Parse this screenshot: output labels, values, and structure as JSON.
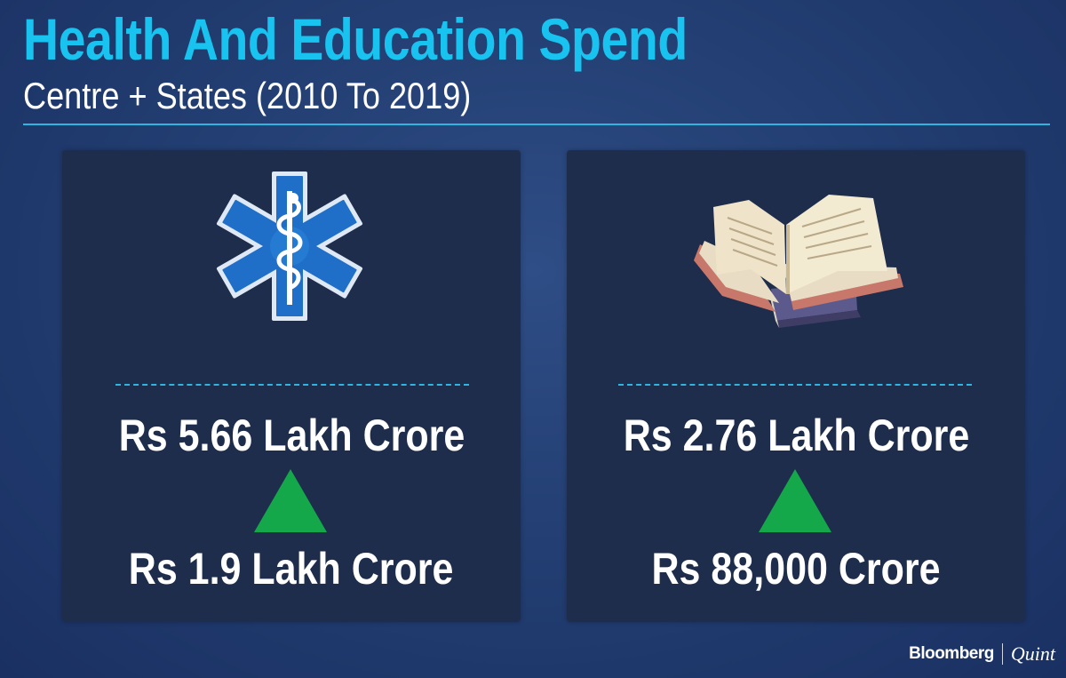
{
  "title": "Health And Education Spend",
  "subtitle": "Centre + States (2010 To 2019)",
  "cards": [
    {
      "icon": "star-of-life-icon",
      "current": "Rs 5.66  Lakh Crore",
      "previous": "Rs 1.9 Lakh Crore",
      "trend": "up"
    },
    {
      "icon": "open-book-icon",
      "current": "Rs 2.76 Lakh Crore",
      "previous": "Rs 88,000 Crore",
      "trend": "up"
    }
  ],
  "brand": {
    "primary": "Bloomberg",
    "secondary": "Quint"
  },
  "colors": {
    "accent": "#18c3ef",
    "up_arrow": "#14a84a",
    "card": "#1e2d4b"
  }
}
